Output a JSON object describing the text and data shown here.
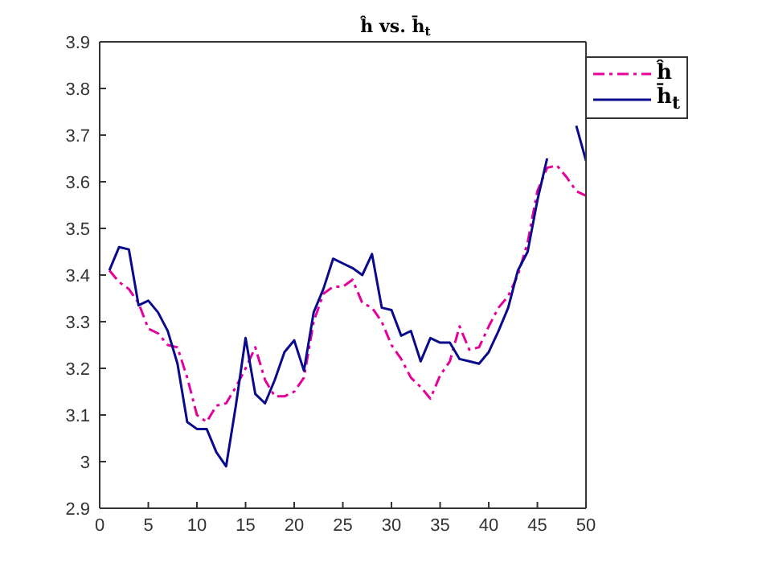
{
  "chart_data": {
    "type": "line",
    "title": "ĥ vs. h̄$_{t}$",
    "x": [
      1,
      2,
      3,
      4,
      5,
      6,
      7,
      8,
      9,
      10,
      11,
      12,
      13,
      14,
      15,
      16,
      17,
      18,
      19,
      20,
      21,
      22,
      23,
      24,
      25,
      26,
      27,
      28,
      29,
      30,
      31,
      32,
      33,
      34,
      35,
      36,
      37,
      38,
      39,
      40,
      41,
      42,
      43,
      44,
      45,
      46,
      47,
      48,
      49,
      50
    ],
    "series": [
      {
        "name": "ĥ",
        "color": "#e6009a",
        "line_style": "dashed",
        "values": [
          3.41,
          3.385,
          3.37,
          3.34,
          3.285,
          3.275,
          3.25,
          3.245,
          3.18,
          3.1,
          3.085,
          3.12,
          3.125,
          3.16,
          3.2,
          3.245,
          3.175,
          3.14,
          3.14,
          3.15,
          3.18,
          3.3,
          3.36,
          3.375,
          3.375,
          3.39,
          3.34,
          3.33,
          3.3,
          3.25,
          3.22,
          3.18,
          3.16,
          3.135,
          3.185,
          3.215,
          3.29,
          3.24,
          3.245,
          3.29,
          3.33,
          3.355,
          3.4,
          3.47,
          3.58,
          3.63,
          3.635,
          3.61,
          3.58,
          3.57
        ]
      },
      {
        "name": "h̄$_{t}$",
        "color": "#0a0a8c",
        "line_style": "solid",
        "values": [
          3.41,
          3.46,
          3.455,
          3.335,
          3.345,
          3.32,
          3.28,
          3.21,
          3.085,
          3.07,
          3.07,
          3.02,
          2.99,
          3.12,
          3.265,
          3.145,
          3.125,
          3.175,
          3.235,
          3.26,
          3.195,
          3.32,
          3.37,
          3.435,
          3.425,
          3.415,
          3.4,
          3.445,
          3.33,
          3.325,
          3.27,
          3.28,
          3.215,
          3.265,
          3.255,
          3.255,
          3.22,
          3.215,
          3.21,
          3.235,
          3.28,
          3.33,
          3.41,
          3.45,
          3.56,
          3.65,
          null,
          null,
          3.72,
          3.645
        ]
      }
    ],
    "xlim": [
      0,
      50
    ],
    "xticks": [
      0,
      5,
      10,
      15,
      20,
      25,
      30,
      35,
      40,
      45,
      50
    ],
    "ylim": [
      2.9,
      3.9
    ],
    "yticks": [
      2.9,
      3,
      3.1,
      3.2,
      3.3,
      3.4,
      3.5,
      3.6,
      3.7,
      3.8,
      3.9
    ],
    "grid": false,
    "legend": "top right",
    "marker": "none"
  }
}
